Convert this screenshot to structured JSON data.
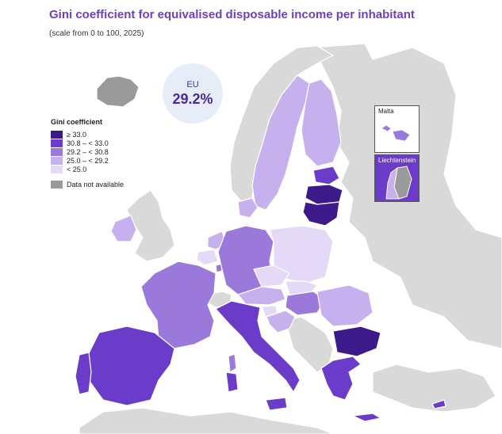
{
  "title": "Gini coefficient for equivalised disposable income per inhabitant",
  "subtitle": "(scale from 0 to 100, 2025)",
  "eu_summary": {
    "label": "EU",
    "value": "29.2%"
  },
  "legend": {
    "title": "Gini coefficient",
    "classes": [
      {
        "label": "≥ 33.0",
        "color": "#3d1a8a"
      },
      {
        "label": "30.8 – < 33.0",
        "color": "#6b3cc9"
      },
      {
        "label": "29.2 – < 30.8",
        "color": "#9b79db"
      },
      {
        "label": "25.0 – < 29.2",
        "color": "#c7b0ee"
      },
      {
        "label": "< 25.0",
        "color": "#e4d9f7"
      }
    ],
    "na_label": "Data not available",
    "na_color": "#9a9a9a"
  },
  "insets": {
    "malta": "Malta",
    "liechtenstein": "Liechtenstein"
  },
  "colors": {
    "sea": "#ffffff",
    "non_eu_land": "#d9d9d9",
    "border": "#ffffff"
  }
}
